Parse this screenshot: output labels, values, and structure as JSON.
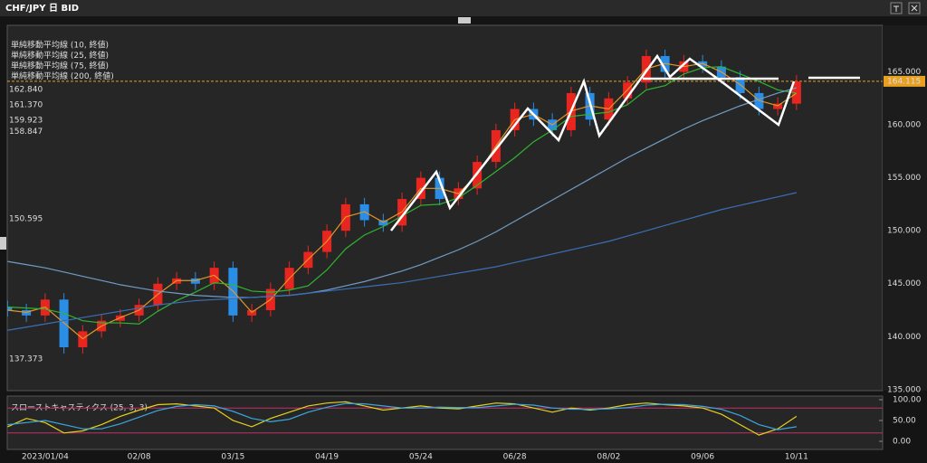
{
  "chart_data": {
    "type": "candlestick",
    "title": "CHF/JPY 日 BID",
    "categories": [
      null,
      null,
      "2023/01/04",
      null,
      null,
      null,
      null,
      "02/08",
      null,
      null,
      null,
      null,
      "03/15",
      null,
      null,
      null,
      null,
      "04/19",
      null,
      null,
      null,
      null,
      "05/24",
      null,
      null,
      null,
      null,
      "06/28",
      null,
      null,
      null,
      null,
      "08/02",
      null,
      null,
      null,
      null,
      "09/06",
      null,
      null,
      null,
      null,
      "10/11"
    ],
    "open": [
      142.8,
      142.5,
      142,
      143.5,
      139,
      140.5,
      141.5,
      142,
      143,
      145,
      145.5,
      145,
      146.5,
      142,
      142.5,
      144.5,
      146.5,
      148,
      150,
      152.5,
      151,
      150.5,
      153,
      155,
      153,
      154,
      156.5,
      159.5,
      161.5,
      160.5,
      159.5,
      163,
      160.5,
      162.5,
      164,
      166.5,
      165,
      166,
      165.5,
      164.5,
      163,
      161.5,
      162
    ],
    "high": [
      143.4,
      143.1,
      144.1,
      144.1,
      141.1,
      142.1,
      142.6,
      143.6,
      145.6,
      146.1,
      146.1,
      147.1,
      147.1,
      143.1,
      145.1,
      147.1,
      148.6,
      150.6,
      153.1,
      153.1,
      151.6,
      153.6,
      155.6,
      155.6,
      154.6,
      157.1,
      160.1,
      162.1,
      162.1,
      161.1,
      163.6,
      163.6,
      163.1,
      164.6,
      167.1,
      167.1,
      166.6,
      166.6,
      166.1,
      165.1,
      163.6,
      162.6,
      164.7
    ],
    "low": [
      141.9,
      141.4,
      141.4,
      138.4,
      138.4,
      139.9,
      140.9,
      141.4,
      142.4,
      144.4,
      144.4,
      144.4,
      141.4,
      141.4,
      141.9,
      143.9,
      145.9,
      147.4,
      149.4,
      150.4,
      149.9,
      149.9,
      152.4,
      152.4,
      152.4,
      153.4,
      155.9,
      158.9,
      159.9,
      158.9,
      158.9,
      159.9,
      159.9,
      161.9,
      163.4,
      164.4,
      164.4,
      164.9,
      163.9,
      162.4,
      160.9,
      160.9,
      161.4
    ],
    "close": [
      142.5,
      142,
      143.5,
      139,
      140.5,
      141.5,
      142,
      143,
      145,
      145.5,
      145,
      146.5,
      142,
      142.5,
      144.5,
      146.5,
      148,
      150,
      152.5,
      151,
      150.5,
      153,
      155,
      153,
      154,
      156.5,
      159.5,
      161.5,
      160.5,
      159.5,
      163,
      160.5,
      162.5,
      164,
      166.5,
      165,
      166,
      165.5,
      164.5,
      163,
      161.5,
      162,
      164.1
    ],
    "up_color": "#e8261f",
    "down_color": "#2b8ee6",
    "ylim": [
      134.9,
      169.4
    ],
    "yticks": [
      {
        "value": 135,
        "label": "135.000"
      },
      {
        "value": 140,
        "label": "140.000"
      },
      {
        "value": 145,
        "label": "145.000"
      },
      {
        "value": 150,
        "label": "150.000"
      },
      {
        "value": 155,
        "label": "155.000"
      },
      {
        "value": 160,
        "label": "160.000"
      },
      {
        "value": 165,
        "label": "165.000"
      }
    ],
    "grid": true,
    "ma_lines": [
      {
        "name": "単純移動平均線 (10, 終値)",
        "color": "#e0962a",
        "values": [
          142.5,
          142.3,
          142.8,
          141.3,
          139.8,
          141,
          141.8,
          142.5,
          144,
          145.3,
          145.3,
          145.8,
          144.3,
          142.3,
          143.5,
          145.5,
          147.3,
          149,
          151.3,
          151.8,
          150.8,
          151.8,
          154,
          154,
          153.5,
          155.3,
          158,
          160.5,
          161,
          160,
          161.3,
          161.8,
          161.5,
          163.3,
          165.3,
          165.8,
          165.5,
          165.8,
          165,
          163.8,
          162.3,
          161.8,
          163
        ]
      },
      {
        "name": "単純移動平均線 (25, 終値)",
        "color": "#2fb52f",
        "values": [
          142.8,
          142.7,
          142.6,
          142.2,
          141.5,
          141.3,
          141.3,
          141.2,
          142.4,
          143.4,
          144.2,
          145.1,
          144.9,
          144.3,
          144.2,
          144.4,
          144.8,
          146.3,
          148.3,
          149.6,
          150.4,
          151.4,
          152.4,
          152.5,
          153.1,
          154.3,
          155.6,
          156.9,
          158.4,
          159.5,
          160.8,
          161,
          161.2,
          161.9,
          163.3,
          163.7,
          164.8,
          165.4,
          165.5,
          164.8,
          164.1,
          163.3,
          163
        ]
      },
      {
        "name": "単純移動平均線 (75, 終値)",
        "color": "#6f9cc4",
        "values": [
          147.1,
          146.8,
          146.5,
          146.1,
          145.7,
          145.3,
          144.9,
          144.6,
          144.3,
          144.1,
          143.9,
          143.8,
          143.7,
          143.7,
          143.8,
          143.9,
          144.1,
          144.4,
          144.8,
          145.2,
          145.7,
          146.2,
          146.8,
          147.5,
          148.2,
          149,
          149.9,
          150.9,
          151.9,
          152.9,
          153.9,
          154.9,
          155.9,
          156.9,
          157.8,
          158.7,
          159.6,
          160.4,
          161.1,
          161.8,
          162.4,
          163,
          163.5
        ]
      },
      {
        "name": "単純移動平均線 (200, 終値)",
        "color": "#3a6fb5",
        "values": [
          140.6,
          140.9,
          141.2,
          141.5,
          141.8,
          142.1,
          142.4,
          142.7,
          143,
          143.2,
          143.4,
          143.5,
          143.6,
          143.7,
          143.8,
          143.9,
          144.1,
          144.3,
          144.5,
          144.7,
          144.9,
          145.1,
          145.4,
          145.7,
          146,
          146.3,
          146.6,
          147,
          147.4,
          147.8,
          148.2,
          148.6,
          149,
          149.5,
          150,
          150.5,
          151,
          151.5,
          152,
          152.4,
          152.8,
          153.2,
          153.6
        ]
      }
    ],
    "levels": [
      {
        "value": 162.84,
        "label": "162.840",
        "color": "#c87070"
      },
      {
        "value": 161.37,
        "label": "161.370",
        "color": "#c87070"
      },
      {
        "value": 159.923,
        "label": "159.923",
        "color": "#e05a5a"
      },
      {
        "value": 158.847,
        "label": "158.847",
        "color": "#cccccc"
      },
      {
        "value": 150.595,
        "label": "150.595",
        "color": "#cccccc"
      },
      {
        "value": 137.373,
        "label": "137.373",
        "color": "#cccccc"
      }
    ],
    "last_price": {
      "value": 164.115,
      "label": "164.115",
      "color": "#e8a020"
    },
    "oscillator": {
      "title": "スローストキャスティクス (25, 3, 3)",
      "ylim": [
        -19.6,
        108.7
      ],
      "yticks": [
        {
          "value": 0,
          "label": "0.00"
        },
        {
          "value": 50,
          "label": "50.00"
        },
        {
          "value": 100,
          "label": "100.00"
        }
      ],
      "bands": [
        20,
        80
      ],
      "series": [
        {
          "color": "#e6d21e",
          "values": [
            35,
            55,
            45,
            20,
            25,
            40,
            60,
            75,
            88,
            90,
            85,
            80,
            50,
            35,
            55,
            70,
            85,
            92,
            95,
            85,
            75,
            80,
            85,
            80,
            78,
            85,
            92,
            90,
            80,
            70,
            80,
            75,
            80,
            88,
            92,
            88,
            85,
            80,
            65,
            40,
            15,
            30,
            60
          ]
        },
        {
          "color": "#3aa7e0",
          "values": [
            40,
            45,
            50,
            40,
            30,
            30,
            42,
            58,
            74,
            84,
            88,
            85,
            72,
            55,
            47,
            53,
            70,
            82,
            91,
            90,
            85,
            80,
            80,
            82,
            81,
            81,
            85,
            89,
            87,
            80,
            77,
            77,
            78,
            81,
            87,
            89,
            88,
            84,
            77,
            62,
            40,
            28,
            35
          ]
        }
      ]
    }
  }
}
